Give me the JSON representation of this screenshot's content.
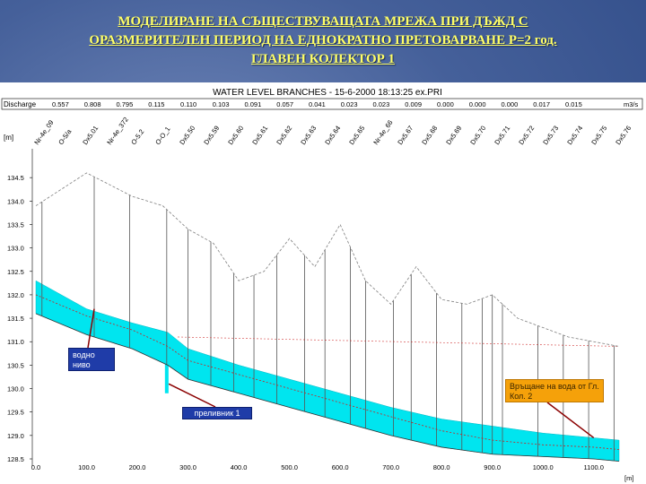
{
  "slide": {
    "title_lines": [
      "МОДЕЛИРАНЕ НА СЪЩЕСТВУВАЩАТА МРЕЖА ПРИ ДЪЖД С",
      "ОРАЗМЕРИТЕЛЕН ПЕРИОД НА ЕДНОКРАТНО ПРЕТОВАРВАНЕ Р=2 год.",
      "ГЛАВЕН КОЛЕКТОР 1"
    ]
  },
  "plot": {
    "header": "WATER LEVEL  BRANCHES - 15-6-2000 18:13:25 ex.PRI",
    "discharge_label": "Discharge",
    "discharge_unit": "m3/s",
    "discharge_values": [
      "0.557",
      "0.808",
      "0.795",
      "0.115",
      "0.110",
      "0.103",
      "0.091",
      "0.057",
      "0.041",
      "0.023",
      "0.023",
      "0.009",
      "0.000",
      "0.000",
      "0.000",
      "0.017",
      "0.015"
    ],
    "y_unit": "[m]",
    "x_unit": "[m]",
    "node_labels": [
      "Nr-4e_09",
      "O-5/a",
      "Dx5.01",
      "Nr-4e_372",
      "O-5.2",
      "O-O_1",
      "Dx5.50",
      "Dx5.59",
      "Dx5.60",
      "Dx5.61",
      "Dx5.62",
      "Dx5.63",
      "Dx5.64",
      "Dx5.65",
      "Nr-4e_66",
      "Dx5.67",
      "Dx5.68",
      "Dx5.69",
      "Dx5.70",
      "Dx5.71",
      "Dx5.72",
      "Dx5.73",
      "Dx5.74",
      "Dx5.75",
      "Dx5.76"
    ],
    "y_ticks": [
      "134.5",
      "134.0",
      "133.5",
      "133.0",
      "132.5",
      "132.0",
      "131.5",
      "131.0",
      "130.5",
      "130.0",
      "129.5",
      "129.0",
      "128.5"
    ],
    "x_ticks": [
      "0.0",
      "100.0",
      "200.0",
      "300.0",
      "400.0",
      "500.0",
      "600.0",
      "700.0",
      "800.0",
      "900.0",
      "1000.0",
      "1100.0"
    ]
  },
  "chart_data": {
    "type": "line",
    "title": "WATER LEVEL  BRANCHES - 15-6-2000 18:13:25 ex.PRI",
    "xlabel": "[m]",
    "ylabel": "[m]",
    "xlim": [
      0,
      1150
    ],
    "ylim": [
      128.5,
      135
    ],
    "series": [
      {
        "name": "ground",
        "x": [
          0,
          100,
          190,
          250,
          300,
          350,
          400,
          450,
          500,
          550,
          600,
          650,
          700,
          750,
          800,
          850,
          900,
          950,
          1000,
          1050,
          1100,
          1150
        ],
        "values": [
          133.9,
          134.6,
          134.1,
          133.9,
          133.4,
          133.1,
          132.3,
          132.5,
          133.2,
          132.6,
          133.5,
          132.3,
          131.8,
          132.6,
          131.9,
          131.8,
          132.0,
          131.5,
          131.3,
          131.1,
          131.0,
          130.9
        ]
      },
      {
        "name": "water level",
        "x": [
          0,
          100,
          190,
          260,
          300,
          400,
          500,
          600,
          700,
          800,
          900,
          1000,
          1100,
          1150
        ],
        "values": [
          132.3,
          131.7,
          131.4,
          131.2,
          130.85,
          130.5,
          130.2,
          129.9,
          129.6,
          129.35,
          129.2,
          129.05,
          128.95,
          128.9
        ]
      },
      {
        "name": "pipe crown",
        "x": [
          0,
          100,
          190,
          260,
          300,
          400,
          500,
          600,
          700,
          800,
          900,
          1000,
          1100,
          1150
        ],
        "values": [
          132.0,
          131.55,
          131.25,
          130.9,
          130.6,
          130.3,
          130.0,
          129.7,
          129.4,
          129.1,
          128.9,
          128.8,
          128.75,
          128.7
        ]
      },
      {
        "name": "pipe invert",
        "x": [
          0,
          100,
          190,
          260,
          300,
          400,
          500,
          600,
          700,
          800,
          900,
          1000,
          1100,
          1150
        ],
        "values": [
          131.6,
          131.15,
          130.85,
          130.5,
          130.2,
          129.9,
          129.6,
          129.3,
          129.0,
          128.75,
          128.6,
          128.55,
          128.5,
          128.45
        ]
      }
    ]
  },
  "callouts": {
    "water_level": "водно ниво",
    "overflow": "преливник 1",
    "return_water": "Връщане на вода от Гл. Кол. 2"
  },
  "colors": {
    "title": "#ffff66",
    "water": "#00e5ef",
    "ground": "#7f7f7f",
    "red_line": "#cc2222",
    "callout_blue": "#1f3ca8",
    "callout_orange": "#f5a10a"
  }
}
